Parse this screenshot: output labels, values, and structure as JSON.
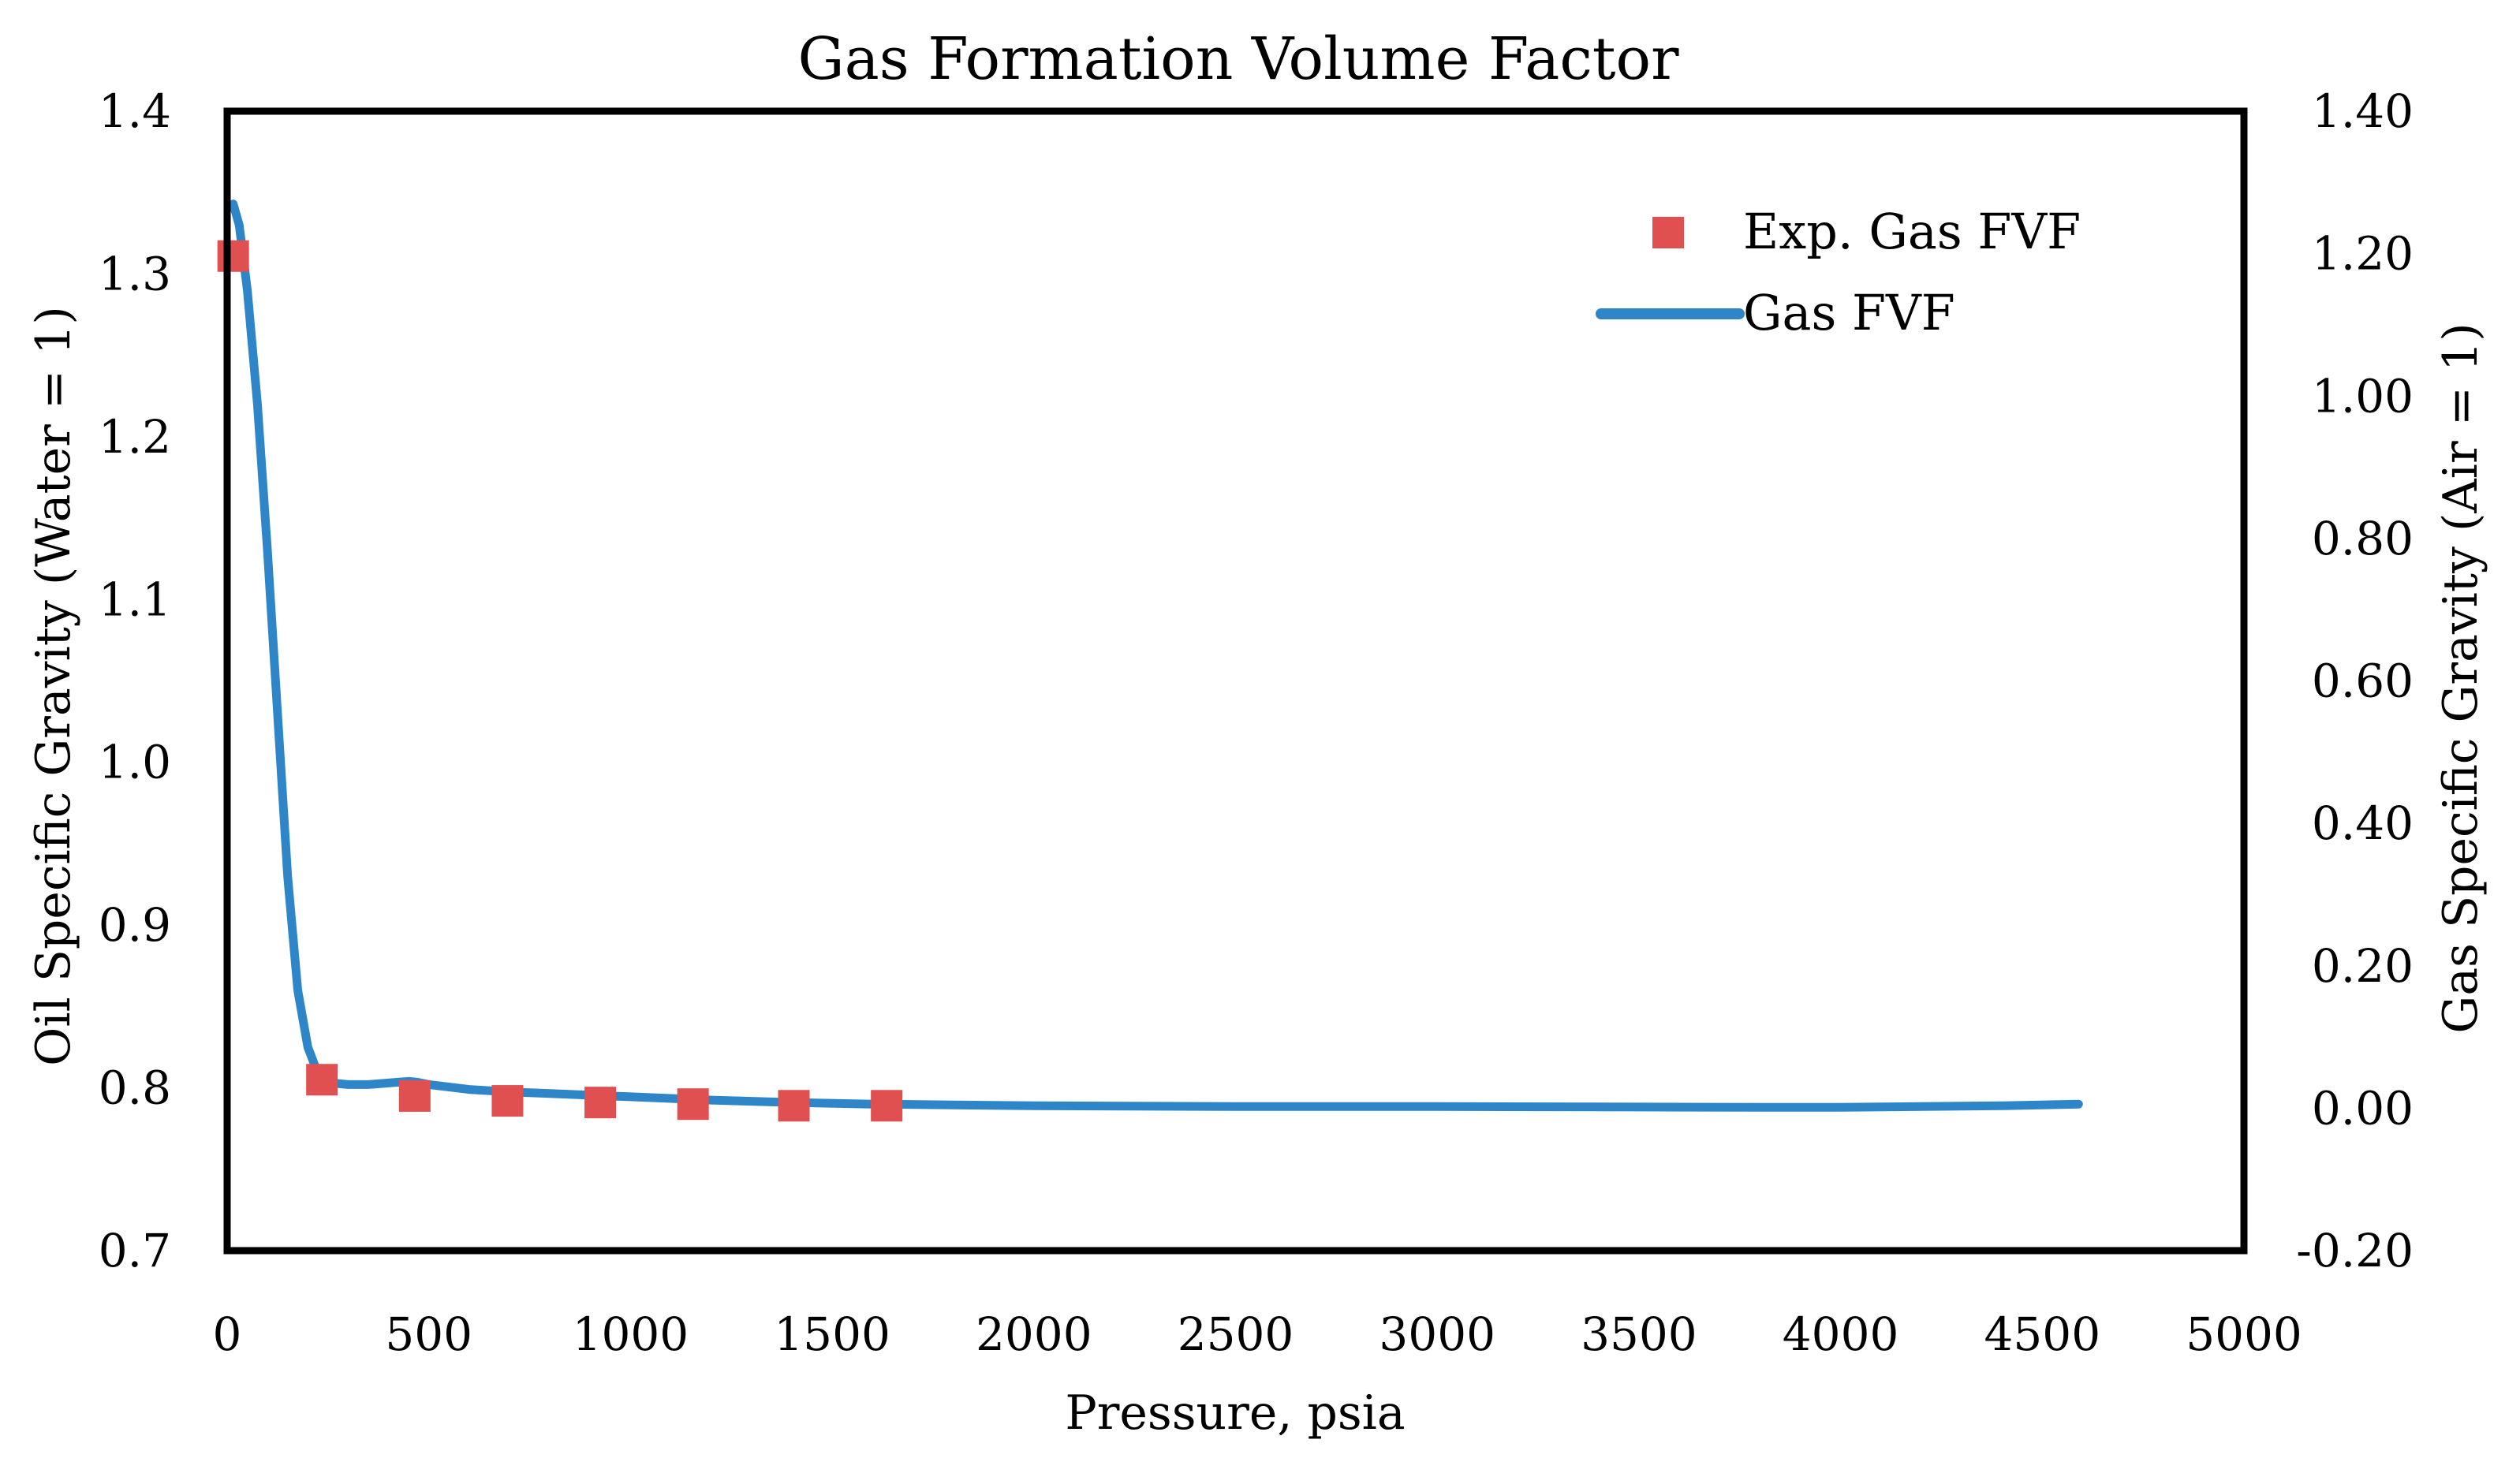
{
  "chart_data": {
    "type": "line",
    "title": "Gas Formation Volume Factor",
    "xlabel": "Pressure, psia",
    "ylabel_left": "Oil Specific Gravity (Water = 1)",
    "ylabel_right": "Gas Specific Gravity (Air = 1)",
    "xlim": [
      0,
      5000
    ],
    "ylim_left": [
      0.7,
      1.4
    ],
    "ylim_right": [
      -0.2,
      1.4
    ],
    "x_ticks": [
      0,
      500,
      1000,
      1500,
      2000,
      2500,
      3000,
      3500,
      4000,
      4500,
      5000
    ],
    "x_tick_labels": [
      "0",
      "500",
      "1000",
      "1500",
      "2000",
      "2500",
      "3000",
      "3500",
      "4000",
      "4500",
      "5000"
    ],
    "y_left_ticks": [
      1.4,
      1.3,
      1.2,
      1.1,
      1.0,
      0.9,
      0.8,
      0.7
    ],
    "y_left_tick_labels": [
      "1.4",
      "1.3",
      "1.2",
      "1.1",
      "1.0",
      "0.9",
      "0.8",
      "0.7"
    ],
    "y_right_ticks": [
      1.4,
      1.2,
      1.0,
      0.8,
      0.6,
      0.4,
      0.2,
      0.0,
      -0.2
    ],
    "y_right_tick_labels": [
      "1.40",
      "1.20",
      "1.00",
      "0.80",
      "0.60",
      "0.40",
      "0.20",
      "0.00",
      "-0.20"
    ],
    "legend_position": "top-right",
    "series": [
      {
        "name": "Exp. Gas FVF",
        "kind": "scatter",
        "axis": "left",
        "color": "#E05050",
        "x": [
          15,
          235,
          465,
          695,
          925,
          1155,
          1405,
          1635
        ],
        "y": [
          1.311,
          0.805,
          0.795,
          0.792,
          0.791,
          0.79,
          0.789,
          0.789
        ]
      },
      {
        "name": "Gas FVF",
        "kind": "line",
        "axis": "left",
        "color": "#2E86C8",
        "x": [
          15,
          30,
          50,
          75,
          100,
          125,
          150,
          175,
          200,
          220,
          240,
          260,
          300,
          350,
          400,
          450,
          470,
          500,
          600,
          700,
          800,
          900,
          1000,
          1200,
          1400,
          1600,
          1800,
          2000,
          2500,
          3000,
          3500,
          3800,
          4000,
          4200,
          4400,
          4590
        ],
        "y": [
          1.343,
          1.33,
          1.29,
          1.22,
          1.13,
          1.03,
          0.93,
          0.86,
          0.825,
          0.812,
          0.806,
          0.803,
          0.802,
          0.802,
          0.803,
          0.804,
          0.8035,
          0.802,
          0.799,
          0.7975,
          0.7965,
          0.7955,
          0.7945,
          0.7925,
          0.791,
          0.79,
          0.7895,
          0.789,
          0.7885,
          0.7885,
          0.7882,
          0.788,
          0.788,
          0.7885,
          0.789,
          0.79
        ]
      }
    ]
  }
}
